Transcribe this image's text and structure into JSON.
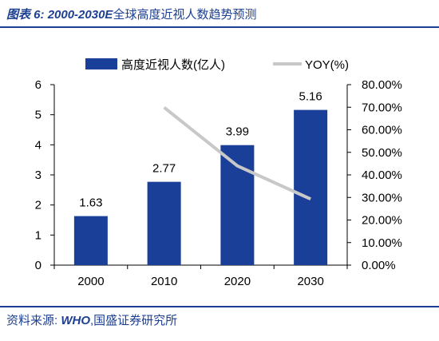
{
  "header": {
    "figure_label": "图表 6:",
    "title_range": "2000-2030E",
    "title_text": "全球高度近视人数趋势预测"
  },
  "source": {
    "prefix": "资料来源:",
    "who": "WHO",
    "suffix": ",国盛证券研究所"
  },
  "colors": {
    "bar": "#1a3f99",
    "line": "#c8c8c8",
    "accent": "#1d3f91"
  },
  "chart_data": {
    "type": "bar",
    "categories": [
      "2000",
      "2010",
      "2020",
      "2030"
    ],
    "series": [
      {
        "name": "高度近视人数(亿人)",
        "type": "bar",
        "axis": "left",
        "values": [
          1.63,
          2.77,
          3.99,
          5.16
        ],
        "labels": [
          "1.63",
          "2.77",
          "3.99",
          "5.16"
        ]
      },
      {
        "name": "YOY(%)",
        "type": "line",
        "axis": "right",
        "values": [
          null,
          69.9,
          44.0,
          29.3
        ]
      }
    ],
    "ylim": [
      0,
      6
    ],
    "yticks": [
      "0",
      "1",
      "2",
      "3",
      "4",
      "5",
      "6"
    ],
    "y2lim": [
      0,
      80
    ],
    "y2ticks": [
      "0.00%",
      "10.00%",
      "20.00%",
      "30.00%",
      "40.00%",
      "50.00%",
      "60.00%",
      "70.00%",
      "80.00%"
    ],
    "legend_position": "top",
    "grid": false
  }
}
